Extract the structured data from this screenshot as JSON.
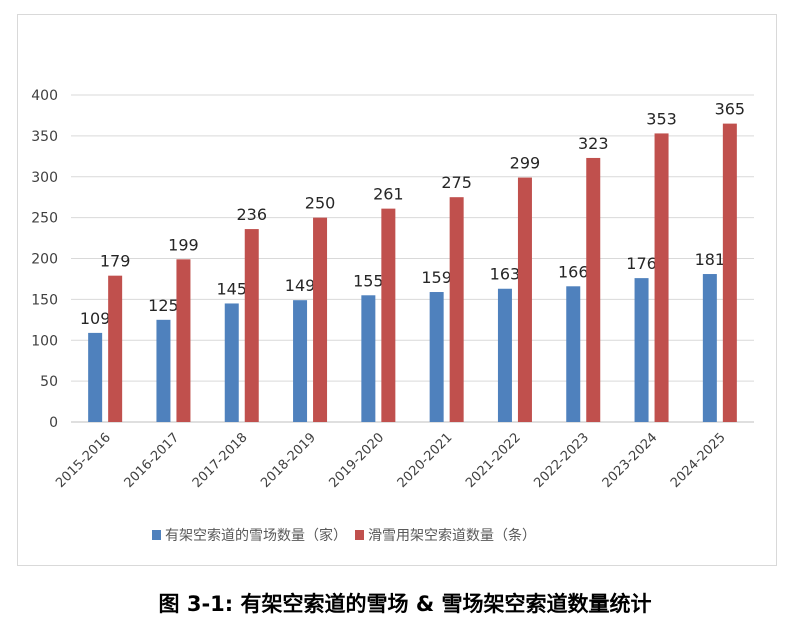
{
  "chart_data": {
    "type": "bar",
    "title": "图 3-1: 有架空索道的雪场 & 雪场架空索道数量统计",
    "categories": [
      "2015-2016",
      "2016-2017",
      "2017-2018",
      "2018-2019",
      "2019-2020",
      "2020-2021",
      "2021-2022",
      "2022-2023",
      "2023-2024",
      "2024-2025"
    ],
    "series": [
      {
        "name": "有架空索道的雪场数量（家）",
        "color": "#4f81bd",
        "values": [
          109,
          125,
          145,
          149,
          155,
          159,
          163,
          166,
          176,
          181
        ]
      },
      {
        "name": "滑雪用架空索道数量（条）",
        "color": "#c0504d",
        "values": [
          179,
          199,
          236,
          250,
          261,
          275,
          299,
          323,
          353,
          365
        ]
      }
    ],
    "ylim": [
      0,
      400
    ],
    "yticks": [
      0,
      50,
      100,
      150,
      200,
      250,
      300,
      350,
      400
    ],
    "grid": true,
    "legend_position": "bottom",
    "data_labels": true
  }
}
